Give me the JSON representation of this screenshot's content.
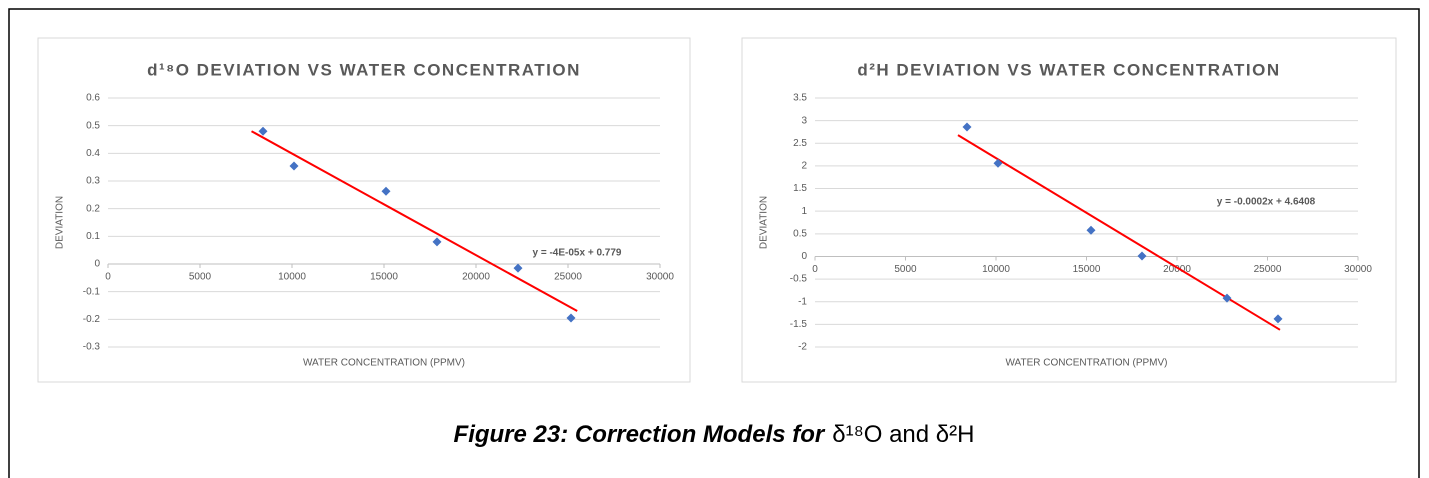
{
  "chart_data": [
    {
      "type": "scatter",
      "title": "d¹⁸O DEVIATION VS WATER CONCENTRATION",
      "xlabel": "WATER CONCENTRATION (PPMV)",
      "ylabel": "DEVIATION",
      "x": [
        8424,
        10109,
        15109,
        17880,
        22283,
        25163
      ],
      "values": [
        0.48,
        0.354,
        0.263,
        0.08,
        -0.015,
        -0.195
      ],
      "color": "#4472c4",
      "xlim": [
        0,
        30000
      ],
      "xticks": [
        0,
        5000,
        10000,
        15000,
        20000,
        25000,
        30000
      ],
      "ylim": [
        -0.3,
        0.6
      ],
      "yticks": [
        -0.3,
        -0.2,
        -0.1,
        0,
        0.1,
        0.2,
        0.3,
        0.4,
        0.5,
        0.6
      ],
      "grid": true,
      "trendline": {
        "x": [
          7800,
          25500
        ],
        "y": [
          0.48,
          -0.17
        ],
        "color": "#ff0000",
        "label": "y = -4E-05x + 0.779"
      }
    },
    {
      "type": "scatter",
      "title": "d²H DEVIATION VS WATER CONCENTRATION",
      "xlabel": "WATER CONCENTRATION (PPMV)",
      "ylabel": "DEVIATION",
      "x": [
        8398,
        10110,
        15249,
        18066,
        22762,
        25580
      ],
      "values": [
        2.86,
        2.06,
        0.58,
        0.01,
        -0.92,
        -1.38
      ],
      "color": "#4472c4",
      "xlim": [
        0,
        30000
      ],
      "xticks": [
        0,
        5000,
        10000,
        15000,
        20000,
        25000,
        30000
      ],
      "ylim": [
        -2,
        3.5
      ],
      "yticks": [
        -2,
        -1.5,
        -1,
        -0.5,
        0,
        0.5,
        1,
        1.5,
        2,
        2.5,
        3,
        3.5
      ],
      "grid": true,
      "trendline": {
        "x": [
          7900,
          25690
        ],
        "y": [
          2.68,
          -1.62
        ],
        "color": "#ff0000",
        "label": "y = -0.0002x + 4.6408"
      }
    }
  ],
  "caption": {
    "label": "Figure 23: Correction Models for",
    "text": "δ¹⁸O and δ²H"
  }
}
